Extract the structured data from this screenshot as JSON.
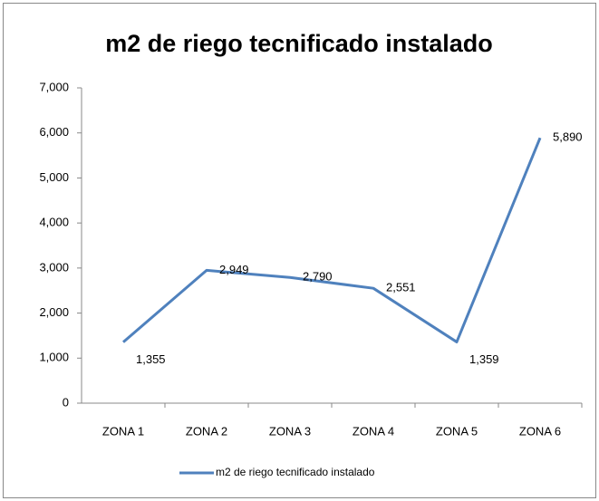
{
  "chart_data": {
    "type": "line",
    "title": "m2 de riego tecnificado instalado",
    "categories": [
      "ZONA 1",
      "ZONA 2",
      "ZONA 3",
      "ZONA 4",
      "ZONA 5",
      "ZONA 6"
    ],
    "series": [
      {
        "name": "m2 de riego tecnificado instalado",
        "color": "#4f81bd",
        "values": [
          1355,
          2949,
          2790,
          2551,
          1359,
          5890
        ],
        "value_labels": [
          "1,355",
          "2,949",
          "2,790",
          "2,551",
          "1,359",
          "5,890"
        ]
      }
    ],
    "ylim": [
      0,
      7000
    ],
    "yticks": [
      0,
      {
        "value": 1000,
        "label": "1,000"
      },
      {
        "value": 2000,
        "label": "2,000"
      },
      {
        "value": 3000,
        "label": "3,000"
      },
      {
        "value": 4000,
        "label": "4,000"
      },
      {
        "value": 5000,
        "label": "5,000"
      },
      {
        "value": 6000,
        "label": "6,000"
      },
      {
        "value": 7000,
        "label": "7,000"
      }
    ],
    "grid": false,
    "legend": "bottom"
  }
}
